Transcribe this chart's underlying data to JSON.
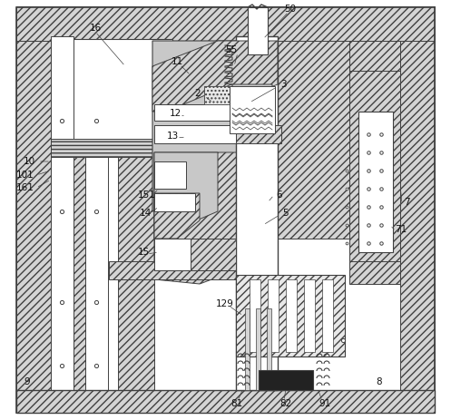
{
  "bg": "#ffffff",
  "lc": "#404040",
  "hatch_fc": "#d4d4d4",
  "gray_fc": "#c8c8c8",
  "white_fc": "#ffffff",
  "light_fc": "#e8e8e8",
  "figsize": [
    4.97,
    4.63
  ],
  "dpi": 100
}
